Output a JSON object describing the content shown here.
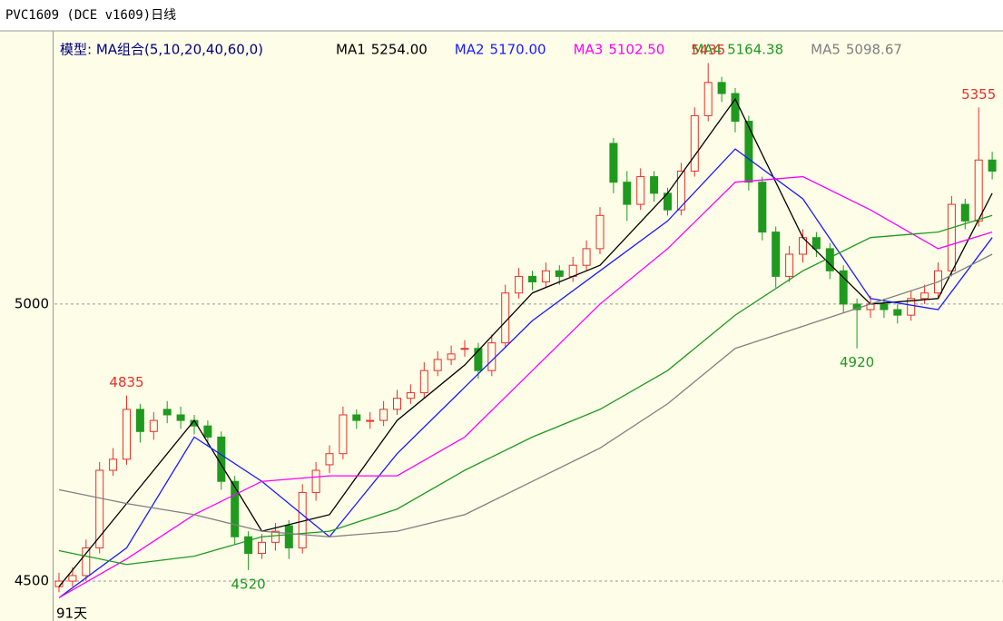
{
  "chart_data": {
    "type": "candlestick",
    "title": "PVC1609 (DCE v1609)日线",
    "model": "模型: MA组合(5,10,20,40,60,0)",
    "footer": "91天",
    "ylim": [
      4428,
      5480
    ],
    "yticks": [
      4500,
      5000
    ],
    "grid": true,
    "up_color": "#e8302a",
    "down_color": "#1f9a1f",
    "ohlc": [
      [
        4490,
        4515,
        4480,
        4500
      ],
      [
        4500,
        4525,
        4490,
        4510
      ],
      [
        4510,
        4575,
        4500,
        4560
      ],
      [
        4560,
        4715,
        4550,
        4700
      ],
      [
        4700,
        4740,
        4690,
        4720
      ],
      [
        4720,
        4835,
        4710,
        4810
      ],
      [
        4810,
        4820,
        4750,
        4770
      ],
      [
        4770,
        4805,
        4755,
        4790
      ],
      [
        4810,
        4825,
        4785,
        4800
      ],
      [
        4800,
        4815,
        4775,
        4790
      ],
      [
        4790,
        4800,
        4765,
        4780
      ],
      [
        4780,
        4790,
        4745,
        4760
      ],
      [
        4760,
        4770,
        4665,
        4680
      ],
      [
        4680,
        4690,
        4565,
        4580
      ],
      [
        4580,
        4590,
        4520,
        4550
      ],
      [
        4550,
        4585,
        4540,
        4570
      ],
      [
        4570,
        4605,
        4555,
        4590
      ],
      [
        4600,
        4610,
        4540,
        4560
      ],
      [
        4560,
        4675,
        4550,
        4660
      ],
      [
        4660,
        4715,
        4645,
        4700
      ],
      [
        4710,
        4745,
        4695,
        4730
      ],
      [
        4730,
        4815,
        4720,
        4800
      ],
      [
        4800,
        4810,
        4775,
        4790
      ],
      [
        4790,
        4805,
        4775,
        4790
      ],
      [
        4790,
        4825,
        4780,
        4810
      ],
      [
        4810,
        4845,
        4800,
        4830
      ],
      [
        4830,
        4855,
        4820,
        4840
      ],
      [
        4840,
        4895,
        4830,
        4880
      ],
      [
        4880,
        4915,
        4870,
        4900
      ],
      [
        4900,
        4925,
        4890,
        4910
      ],
      [
        4920,
        4935,
        4905,
        4920
      ],
      [
        4920,
        4930,
        4865,
        4880
      ],
      [
        4880,
        4945,
        4870,
        4930
      ],
      [
        4930,
        5035,
        4920,
        5020
      ],
      [
        5020,
        5065,
        5010,
        5050
      ],
      [
        5050,
        5060,
        5025,
        5040
      ],
      [
        5040,
        5075,
        5030,
        5060
      ],
      [
        5060,
        5070,
        5035,
        5050
      ],
      [
        5050,
        5085,
        5040,
        5070
      ],
      [
        5070,
        5115,
        5060,
        5100
      ],
      [
        5100,
        5175,
        5090,
        5160
      ],
      [
        5290,
        5300,
        5200,
        5220
      ],
      [
        5220,
        5240,
        5150,
        5180
      ],
      [
        5180,
        5245,
        5170,
        5230
      ],
      [
        5230,
        5240,
        5185,
        5200
      ],
      [
        5200,
        5210,
        5160,
        5170
      ],
      [
        5170,
        5255,
        5160,
        5240
      ],
      [
        5240,
        5355,
        5230,
        5340
      ],
      [
        5340,
        5435,
        5330,
        5400
      ],
      [
        5400,
        5410,
        5365,
        5380
      ],
      [
        5380,
        5390,
        5310,
        5330
      ],
      [
        5330,
        5340,
        5205,
        5220
      ],
      [
        5220,
        5230,
        5115,
        5130
      ],
      [
        5130,
        5140,
        5030,
        5050
      ],
      [
        5050,
        5105,
        5040,
        5090
      ],
      [
        5090,
        5135,
        5075,
        5120
      ],
      [
        5120,
        5130,
        5085,
        5100
      ],
      [
        5100,
        5110,
        5045,
        5060
      ],
      [
        5060,
        5070,
        4985,
        5000
      ],
      [
        5000,
        5010,
        4920,
        4990
      ],
      [
        4990,
        5015,
        4975,
        5000
      ],
      [
        5000,
        5010,
        4975,
        4990
      ],
      [
        4990,
        5000,
        4965,
        4980
      ],
      [
        4980,
        5025,
        4970,
        5010
      ],
      [
        5010,
        5035,
        5000,
        5020
      ],
      [
        5020,
        5075,
        5010,
        5060
      ],
      [
        5060,
        5195,
        5050,
        5180
      ],
      [
        5180,
        5190,
        5135,
        5150
      ],
      [
        5150,
        5355,
        5140,
        5260
      ],
      [
        5260,
        5275,
        5225,
        5240
      ]
    ],
    "ma_index": [
      0,
      5,
      10,
      15,
      20,
      25,
      30,
      35,
      40,
      45,
      50,
      55,
      60,
      65,
      69
    ],
    "series": [
      {
        "name": "MA1",
        "legend_value": "5254.00",
        "color": "#000000",
        "values": [
          4490,
          4640,
          4790,
          4590,
          4620,
          4790,
          4890,
          5020,
          5070,
          5200,
          5370,
          5120,
          5000,
          5010,
          5200
        ]
      },
      {
        "name": "MA2",
        "legend_value": "5170.00",
        "color": "#1a1aff",
        "values": [
          4470,
          4560,
          4760,
          4680,
          4580,
          4730,
          4850,
          4970,
          5060,
          5150,
          5280,
          5190,
          5010,
          4990,
          5120
        ]
      },
      {
        "name": "MA3",
        "legend_value": "5102.50",
        "color": "#ff00ff",
        "values": [
          4470,
          4540,
          4620,
          4680,
          4690,
          4690,
          4760,
          4880,
          5000,
          5100,
          5220,
          5230,
          5170,
          5100,
          5130
        ]
      },
      {
        "name": "MA4",
        "legend_value": "5164.38",
        "color": "#1f9a1f",
        "values": [
          4555,
          4530,
          4545,
          4580,
          4590,
          4630,
          4700,
          4760,
          4810,
          4880,
          4980,
          5060,
          5120,
          5130,
          5160
        ]
      },
      {
        "name": "MA5",
        "legend_value": "5098.67",
        "color": "#808080",
        "values": [
          4665,
          4640,
          4620,
          4590,
          4580,
          4590,
          4620,
          4680,
          4740,
          4820,
          4920,
          4960,
          5000,
          5040,
          5090
        ]
      }
    ],
    "extremes": [
      {
        "index": 5,
        "value": 4835,
        "kind": "high"
      },
      {
        "index": 14,
        "value": 4520,
        "kind": "low"
      },
      {
        "index": 48,
        "value": 5435,
        "kind": "high"
      },
      {
        "index": 59,
        "value": 4920,
        "kind": "low"
      },
      {
        "index": 68,
        "value": 5355,
        "kind": "high"
      }
    ]
  }
}
